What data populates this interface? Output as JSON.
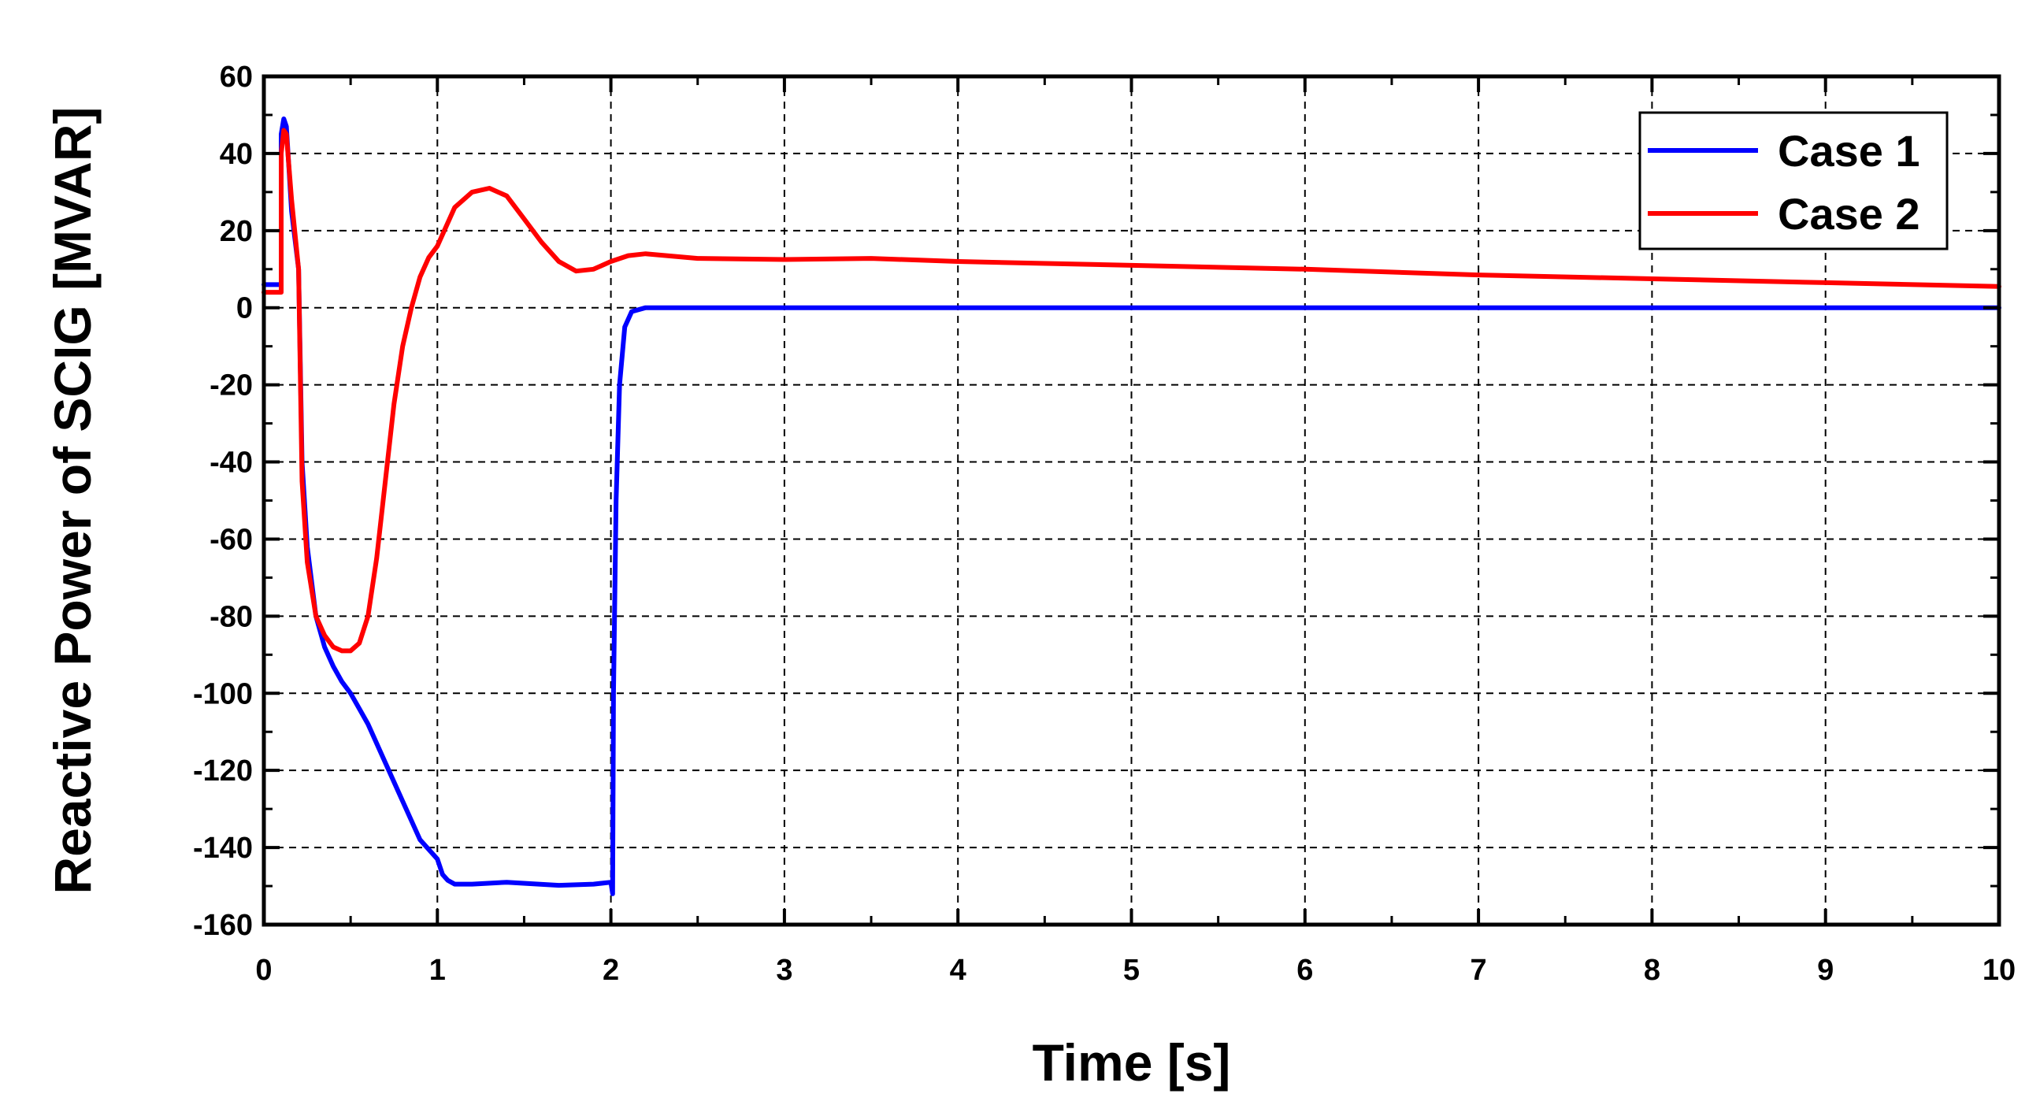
{
  "chart_data": {
    "type": "line",
    "title": "",
    "xlabel": "Time [s]",
    "ylabel": "Reactive Power of SCIG [MVAR]",
    "xlim": [
      0,
      10
    ],
    "ylim": [
      -160,
      60
    ],
    "xticks": [
      "0",
      "1",
      "2",
      "3",
      "4",
      "5",
      "6",
      "7",
      "8",
      "9",
      "10"
    ],
    "yticks": [
      "60",
      "40",
      "20",
      "0",
      "-20",
      "-40",
      "-60",
      "-80",
      "-100",
      "-120",
      "-140",
      "-160"
    ],
    "grid": true,
    "legend_position": "top-right",
    "series": [
      {
        "name": "Case 1",
        "color": "#0000ff",
        "x": [
          0,
          0.1,
          0.1,
          0.115,
          0.13,
          0.16,
          0.2,
          0.22,
          0.25,
          0.3,
          0.35,
          0.4,
          0.45,
          0.5,
          0.55,
          0.6,
          0.7,
          0.8,
          0.9,
          1.0,
          1.03,
          1.06,
          1.1,
          1.2,
          1.4,
          1.7,
          1.9,
          2.0,
          2.01,
          2.015,
          2.03,
          2.05,
          2.08,
          2.12,
          2.2,
          3,
          4,
          5,
          6,
          7,
          8,
          9,
          10
        ],
        "y": [
          6,
          6,
          45,
          49,
          47,
          25,
          10,
          -40,
          -62,
          -80,
          -88,
          -93,
          -97,
          -100,
          -104,
          -108,
          -118,
          -128,
          -138,
          -143,
          -147,
          -148.5,
          -149.5,
          -149.5,
          -149,
          -149.8,
          -149.5,
          -149,
          -152,
          -100,
          -50,
          -20,
          -5,
          -1,
          0,
          0,
          0,
          0,
          0,
          0,
          0,
          0,
          0
        ]
      },
      {
        "name": "Case 2",
        "color": "#ff0000",
        "x": [
          0,
          0.1,
          0.1,
          0.115,
          0.13,
          0.16,
          0.2,
          0.22,
          0.25,
          0.3,
          0.35,
          0.4,
          0.45,
          0.5,
          0.55,
          0.6,
          0.65,
          0.7,
          0.75,
          0.8,
          0.85,
          0.9,
          0.95,
          1.0,
          1.1,
          1.2,
          1.3,
          1.4,
          1.5,
          1.6,
          1.7,
          1.8,
          1.9,
          2.0,
          2.1,
          2.2,
          2.5,
          3,
          3.5,
          4,
          5,
          6,
          7,
          8,
          9,
          10
        ],
        "y": [
          4,
          4,
          40,
          46,
          45,
          28,
          10,
          -45,
          -66,
          -80,
          -85,
          -88,
          -89,
          -89,
          -87,
          -80,
          -65,
          -45,
          -25,
          -10,
          0,
          8,
          13,
          16,
          26,
          30,
          31,
          29,
          23,
          17,
          12,
          9.5,
          10,
          12,
          13.5,
          14,
          12.8,
          12.5,
          12.8,
          12,
          11,
          10,
          8.5,
          7.5,
          6.5,
          5.5
        ]
      }
    ]
  }
}
